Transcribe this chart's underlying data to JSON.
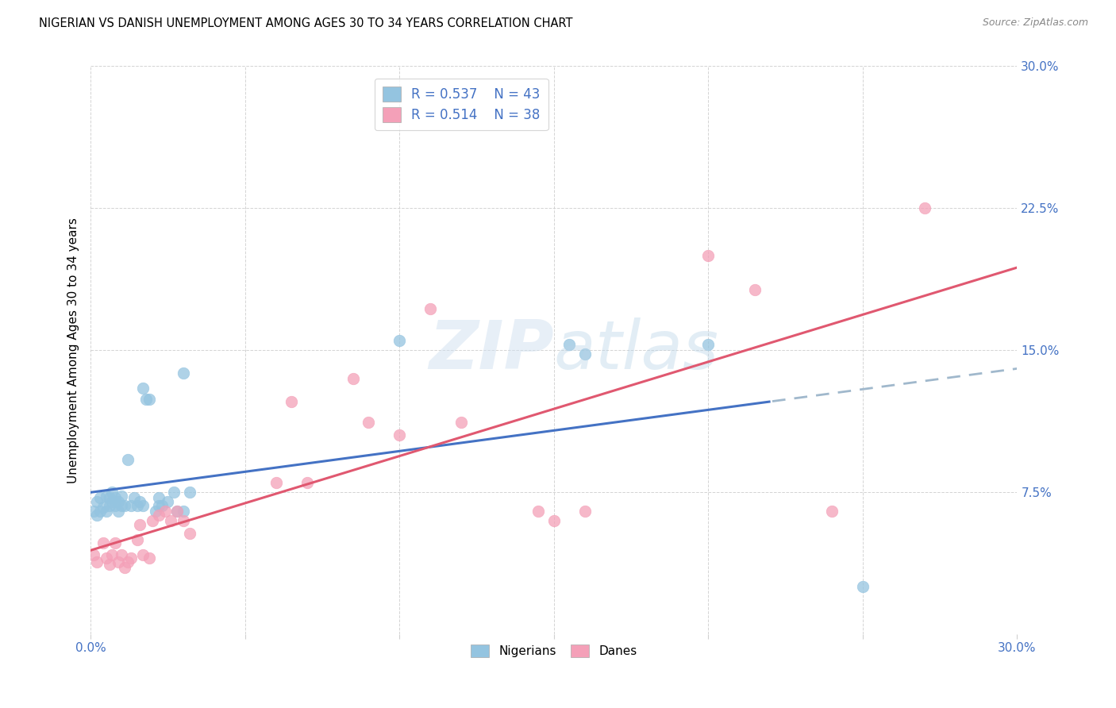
{
  "title": "NIGERIAN VS DANISH UNEMPLOYMENT AMONG AGES 30 TO 34 YEARS CORRELATION CHART",
  "source": "Source: ZipAtlas.com",
  "ylabel": "Unemployment Among Ages 30 to 34 years",
  "xlim": [
    0.0,
    0.3
  ],
  "ylim": [
    0.0,
    0.3
  ],
  "nigerian_R": "0.537",
  "nigerian_N": "43",
  "danish_R": "0.514",
  "danish_N": "38",
  "nigerian_color": "#94c4e0",
  "danish_color": "#f4a0b8",
  "trend_nigerian_color": "#4472c4",
  "trend_danish_color": "#e05870",
  "trend_dashed_color": "#a0b8cc",
  "nigerian_x": [
    0.001,
    0.002,
    0.002,
    0.003,
    0.003,
    0.004,
    0.005,
    0.005,
    0.006,
    0.006,
    0.007,
    0.007,
    0.008,
    0.008,
    0.009,
    0.009,
    0.01,
    0.01,
    0.011,
    0.012,
    0.013,
    0.014,
    0.015,
    0.016,
    0.017,
    0.017,
    0.018,
    0.019,
    0.021,
    0.022,
    0.022,
    0.023,
    0.025,
    0.027,
    0.028,
    0.03,
    0.03,
    0.032,
    0.1,
    0.155,
    0.16,
    0.2,
    0.25
  ],
  "nigerian_y": [
    0.065,
    0.063,
    0.07,
    0.065,
    0.072,
    0.067,
    0.065,
    0.073,
    0.072,
    0.068,
    0.07,
    0.075,
    0.068,
    0.072,
    0.065,
    0.07,
    0.068,
    0.073,
    0.068,
    0.092,
    0.068,
    0.072,
    0.068,
    0.07,
    0.13,
    0.068,
    0.124,
    0.124,
    0.065,
    0.068,
    0.072,
    0.068,
    0.07,
    0.075,
    0.065,
    0.138,
    0.065,
    0.075,
    0.155,
    0.153,
    0.148,
    0.153,
    0.025
  ],
  "danish_x": [
    0.001,
    0.002,
    0.004,
    0.005,
    0.006,
    0.007,
    0.008,
    0.009,
    0.01,
    0.011,
    0.012,
    0.013,
    0.015,
    0.016,
    0.017,
    0.019,
    0.02,
    0.022,
    0.024,
    0.026,
    0.028,
    0.03,
    0.032,
    0.06,
    0.065,
    0.07,
    0.085,
    0.09,
    0.1,
    0.11,
    0.12,
    0.145,
    0.15,
    0.16,
    0.2,
    0.215,
    0.24,
    0.27
  ],
  "danish_y": [
    0.042,
    0.038,
    0.048,
    0.04,
    0.037,
    0.042,
    0.048,
    0.038,
    0.042,
    0.035,
    0.038,
    0.04,
    0.05,
    0.058,
    0.042,
    0.04,
    0.06,
    0.063,
    0.065,
    0.06,
    0.065,
    0.06,
    0.053,
    0.08,
    0.123,
    0.08,
    0.135,
    0.112,
    0.105,
    0.172,
    0.112,
    0.065,
    0.06,
    0.065,
    0.2,
    0.182,
    0.065,
    0.225
  ],
  "background_color": "#ffffff",
  "grid_color": "#d0d0d0",
  "title_fontsize": 10.5,
  "tick_label_color": "#4472c4"
}
